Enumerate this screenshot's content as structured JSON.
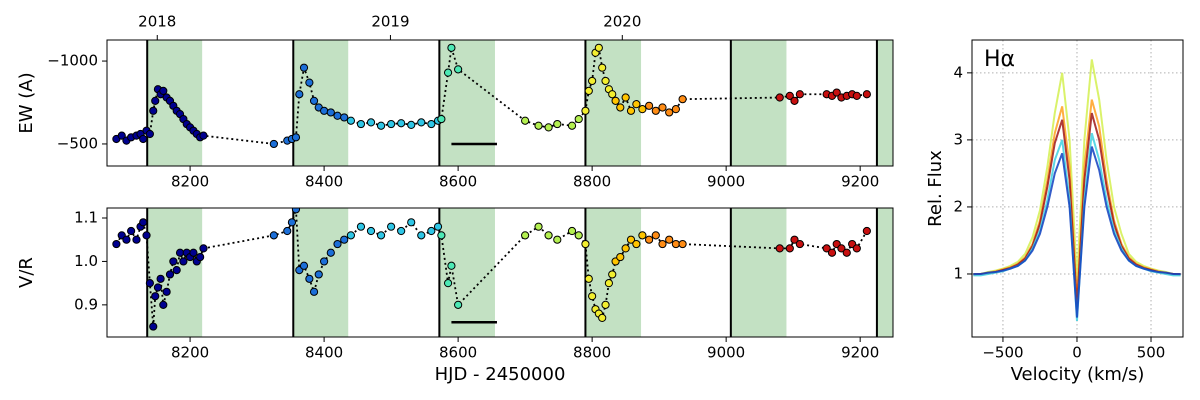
{
  "chart_data": [
    {
      "type": "scatter",
      "ylabel": "EW (A)",
      "xlim": [
        8076,
        9249
      ],
      "xticks": [
        8200,
        8400,
        8600,
        8800,
        9000,
        9200
      ],
      "x2ticks": [
        {
          "value": 8151,
          "label": "2018"
        },
        {
          "value": 8499,
          "label": "2019"
        },
        {
          "value": 8845,
          "label": "2020"
        }
      ],
      "ylim": [
        -367,
        -1127
      ],
      "yticks": [
        {
          "value": -1000,
          "label": "−1000"
        },
        {
          "value": -500,
          "label": "−500"
        }
      ],
      "spans": [
        [
          8136,
          8218
        ],
        [
          8354,
          8436
        ],
        [
          8572,
          8655
        ],
        [
          8790,
          8873
        ],
        [
          9007,
          9090
        ],
        [
          9225,
          9249
        ]
      ],
      "span_color": "#c3e1c3",
      "vlines": [
        8136,
        8354,
        8572,
        8790,
        9007,
        9225
      ],
      "hbar": {
        "x": [
          8590,
          8658
        ],
        "y": -500
      },
      "connect": true,
      "series": [
        {
          "color": "#00008f",
          "x": [
            8090,
            8098,
            8105,
            8112,
            8120,
            8126,
            8130,
            8135,
            8140,
            8145,
            8148,
            8152,
            8156,
            8160,
            8165,
            8170,
            8175,
            8180,
            8185,
            8190,
            8195,
            8200,
            8205,
            8210,
            8215,
            8220
          ],
          "values": [
            -530,
            -550,
            -520,
            -540,
            -550,
            -560,
            -530,
            -580,
            -560,
            -700,
            -760,
            -830,
            -800,
            -820,
            -780,
            -760,
            -730,
            -700,
            -680,
            -650,
            -620,
            -600,
            -580,
            -560,
            -540,
            -550
          ]
        },
        {
          "color": "#1c6fd8",
          "x": [
            8325,
            8345,
            8352,
            8358,
            8363,
            8370,
            8378,
            8385,
            8392,
            8400,
            8410,
            8420,
            8430
          ],
          "values": [
            -500,
            -520,
            -530,
            -540,
            -800,
            -960,
            -870,
            -760,
            -720,
            -700,
            -690,
            -670,
            -660
          ]
        },
        {
          "color": "#2fc6e6",
          "x": [
            8440,
            8455,
            8470,
            8485,
            8500,
            8515,
            8530,
            8545,
            8560,
            8570
          ],
          "values": [
            -640,
            -620,
            -630,
            -610,
            -620,
            -625,
            -615,
            -630,
            -620,
            -640
          ]
        },
        {
          "color": "#4ce8b4",
          "x": [
            8575,
            8585,
            8590,
            8600
          ],
          "values": [
            -650,
            -930,
            -1080,
            -950
          ]
        },
        {
          "color": "#b4f050",
          "x": [
            8700,
            8720,
            8735,
            8748,
            8770,
            8780
          ],
          "values": [
            -640,
            -610,
            -600,
            -620,
            -610,
            -650
          ]
        },
        {
          "color": "#f2ee30",
          "x": [
            8790,
            8795,
            8800,
            8805,
            8810,
            8815,
            8820,
            8825,
            8830
          ],
          "values": [
            -700,
            -820,
            -880,
            -1050,
            -1080,
            -960,
            -880,
            -830,
            -800
          ]
        },
        {
          "color": "#ffc400",
          "x": [
            8835,
            8842,
            8850,
            8858,
            8866,
            8875
          ],
          "values": [
            -760,
            -720,
            -780,
            -700,
            -740,
            -710
          ]
        },
        {
          "color": "#ff8c14",
          "x": [
            8885,
            8895,
            8905,
            8915,
            8925,
            8935
          ],
          "values": [
            -730,
            -700,
            -720,
            -690,
            -710,
            -770
          ]
        },
        {
          "color": "#c81010",
          "x": [
            9080,
            9095,
            9102,
            9110,
            9150,
            9158,
            9165,
            9172,
            9180,
            9188,
            9195,
            9210
          ],
          "values": [
            -780,
            -790,
            -760,
            -800,
            -800,
            -790,
            -810,
            -780,
            -790,
            -800,
            -790,
            -800
          ]
        }
      ]
    },
    {
      "type": "scatter",
      "xlabel": "HJD - 2450000",
      "ylabel": "V/R",
      "xlim": [
        8076,
        9249
      ],
      "xticks": [
        8200,
        8400,
        8600,
        8800,
        9000,
        9200
      ],
      "ylim": [
        0.826,
        1.123
      ],
      "yticks": [
        0.9,
        {
          "value": 1.0,
          "label": "1.0"
        },
        1.1
      ],
      "spans": [
        [
          8136,
          8218
        ],
        [
          8354,
          8436
        ],
        [
          8572,
          8655
        ],
        [
          8790,
          8873
        ],
        [
          9007,
          9090
        ],
        [
          9225,
          9249
        ]
      ],
      "span_color": "#c3e1c3",
      "vlines": [
        8136,
        8354,
        8572,
        8790,
        9007,
        9225
      ],
      "hbar": {
        "x": [
          8590,
          8658
        ],
        "y": 0.86
      },
      "connect": true,
      "series": [
        {
          "color": "#00008f",
          "x": [
            8090,
            8098,
            8105,
            8112,
            8120,
            8126,
            8130,
            8135,
            8140,
            8145,
            8148,
            8152,
            8156,
            8160,
            8165,
            8170,
            8175,
            8180,
            8185,
            8190,
            8195,
            8200,
            8205,
            8210,
            8215,
            8220
          ],
          "values": [
            1.04,
            1.06,
            1.05,
            1.07,
            1.05,
            1.08,
            1.09,
            1.06,
            0.95,
            0.85,
            0.92,
            0.94,
            0.96,
            0.9,
            0.93,
            0.97,
            1.0,
            0.98,
            1.02,
            1.0,
            1.02,
            1.01,
            1.02,
            1.0,
            1.01,
            1.03
          ]
        },
        {
          "color": "#1c6fd8",
          "x": [
            8325,
            8345,
            8352,
            8358,
            8363,
            8370,
            8378,
            8385,
            8392,
            8400,
            8410,
            8420,
            8430
          ],
          "values": [
            1.06,
            1.07,
            1.09,
            1.12,
            0.98,
            0.99,
            0.96,
            0.93,
            0.97,
            1.0,
            1.02,
            1.04,
            1.05
          ]
        },
        {
          "color": "#2fc6e6",
          "x": [
            8440,
            8455,
            8470,
            8485,
            8500,
            8515,
            8530,
            8545,
            8560,
            8570
          ],
          "values": [
            1.06,
            1.08,
            1.07,
            1.06,
            1.08,
            1.07,
            1.09,
            1.06,
            1.07,
            1.08
          ]
        },
        {
          "color": "#4ce8b4",
          "x": [
            8575,
            8585,
            8590,
            8600
          ],
          "values": [
            1.06,
            0.95,
            0.99,
            0.9
          ]
        },
        {
          "color": "#b4f050",
          "x": [
            8700,
            8720,
            8735,
            8748,
            8770,
            8780
          ],
          "values": [
            1.06,
            1.08,
            1.06,
            1.05,
            1.07,
            1.06
          ]
        },
        {
          "color": "#f2ee30",
          "x": [
            8790,
            8795,
            8800,
            8805,
            8810,
            8815,
            8820,
            8825,
            8830
          ],
          "values": [
            1.04,
            0.96,
            0.92,
            0.89,
            0.88,
            0.87,
            0.9,
            0.95,
            0.97
          ]
        },
        {
          "color": "#ffc400",
          "x": [
            8835,
            8842,
            8850,
            8858,
            8866,
            8875
          ],
          "values": [
            1.0,
            1.01,
            1.03,
            1.05,
            1.04,
            1.06
          ]
        },
        {
          "color": "#ff8c14",
          "x": [
            8885,
            8895,
            8905,
            8915,
            8925,
            8935
          ],
          "values": [
            1.05,
            1.06,
            1.04,
            1.05,
            1.04,
            1.04
          ]
        },
        {
          "color": "#c81010",
          "x": [
            9080,
            9095,
            9102,
            9110,
            9150,
            9158,
            9165,
            9172,
            9180,
            9188,
            9195,
            9210
          ],
          "values": [
            1.03,
            1.03,
            1.05,
            1.04,
            1.03,
            1.02,
            1.04,
            1.03,
            1.02,
            1.04,
            1.03,
            1.07
          ]
        }
      ]
    },
    {
      "type": "line",
      "annotation": "Hα",
      "xlabel": "Velocity (km/s)",
      "ylabel": "Rel. Flux",
      "grid": true,
      "xlim": [
        -709,
        716
      ],
      "xticks": [
        {
          "value": -500,
          "label": "−500"
        },
        0,
        500
      ],
      "ylim": [
        0.06,
        4.49
      ],
      "yticks": [
        1,
        2,
        3,
        4
      ],
      "x": [
        -700,
        -650,
        -600,
        -550,
        -500,
        -450,
        -400,
        -350,
        -300,
        -250,
        -200,
        -150,
        -100,
        -50,
        0,
        50,
        100,
        150,
        200,
        250,
        300,
        350,
        400,
        450,
        500,
        550,
        600,
        650,
        700
      ],
      "series": [
        {
          "color": "#d4f050",
          "values": [
            1.0,
            1.0,
            1.03,
            1.05,
            1.08,
            1.12,
            1.18,
            1.3,
            1.55,
            1.95,
            2.6,
            3.4,
            4.0,
            3.0,
            0.9,
            3.0,
            4.2,
            3.6,
            2.7,
            2.0,
            1.6,
            1.3,
            1.18,
            1.12,
            1.08,
            1.05,
            1.03,
            1.0,
            1.0
          ]
        },
        {
          "color": "#ffa020",
          "values": [
            1.0,
            1.0,
            1.02,
            1.04,
            1.07,
            1.1,
            1.15,
            1.25,
            1.45,
            1.8,
            2.4,
            3.1,
            3.5,
            2.6,
            0.6,
            2.6,
            3.6,
            3.2,
            2.4,
            1.8,
            1.45,
            1.25,
            1.15,
            1.1,
            1.07,
            1.04,
            1.02,
            1.0,
            1.0
          ]
        },
        {
          "color": "#a01818",
          "values": [
            0.99,
            1.0,
            1.01,
            1.03,
            1.06,
            1.09,
            1.14,
            1.23,
            1.42,
            1.75,
            2.3,
            2.95,
            3.3,
            2.4,
            0.5,
            2.4,
            3.4,
            3.0,
            2.3,
            1.75,
            1.42,
            1.23,
            1.14,
            1.09,
            1.06,
            1.03,
            1.01,
            1.0,
            0.99
          ]
        },
        {
          "color": "#40d0e0",
          "values": [
            0.98,
            0.98,
            1.0,
            1.02,
            1.04,
            1.08,
            1.12,
            1.2,
            1.38,
            1.65,
            2.1,
            2.7,
            3.0,
            2.1,
            0.3,
            2.1,
            3.1,
            2.7,
            2.1,
            1.65,
            1.38,
            1.2,
            1.12,
            1.08,
            1.04,
            1.02,
            1.0,
            0.98,
            0.98
          ]
        },
        {
          "color": "#1040c0",
          "values": [
            1.0,
            1.0,
            1.02,
            1.03,
            1.05,
            1.08,
            1.12,
            1.2,
            1.35,
            1.6,
            2.0,
            2.5,
            2.8,
            2.0,
            0.35,
            2.0,
            2.9,
            2.55,
            2.0,
            1.6,
            1.35,
            1.2,
            1.12,
            1.08,
            1.05,
            1.03,
            1.02,
            1.0,
            1.0
          ]
        }
      ]
    }
  ]
}
